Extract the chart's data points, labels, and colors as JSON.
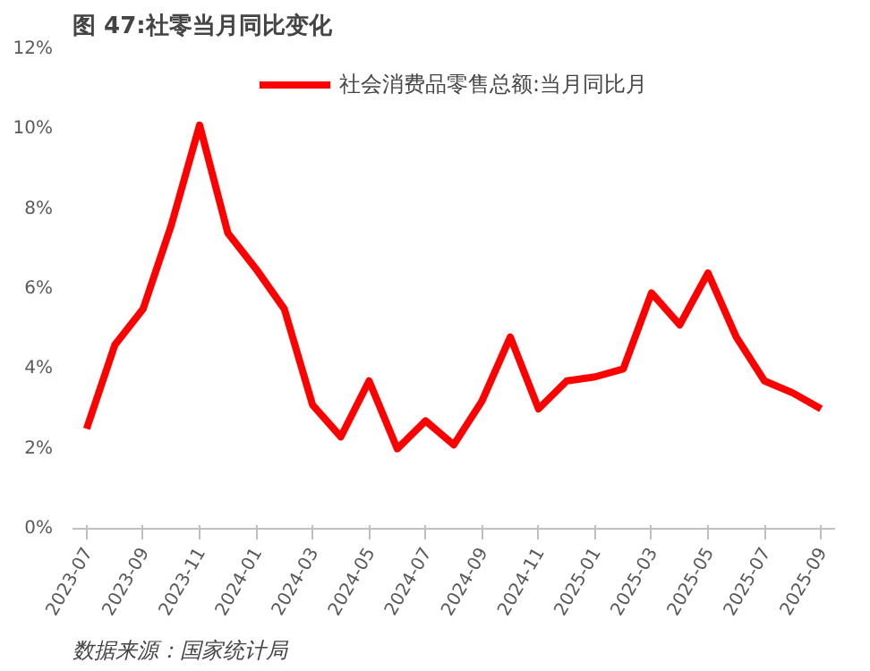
{
  "chart_data": {
    "type": "line",
    "title": "图 47:社零当月同比变化",
    "categories": [
      "2023-07",
      null,
      "2023-09",
      null,
      "2023-11",
      null,
      "2024-01",
      null,
      "2024-03",
      null,
      "2024-05",
      null,
      "2024-07",
      null,
      "2024-09",
      null,
      "2024-11",
      null,
      "2025-01",
      null,
      "2025-03",
      null,
      "2025-05",
      null,
      "2025-07",
      null,
      "2025-09"
    ],
    "series": [
      {
        "name": "社会消费品零售总额:当月同比月",
        "color": "#ff0000",
        "values": [
          2.5,
          4.6,
          5.5,
          7.6,
          10.1,
          7.4,
          6.5,
          5.5,
          3.1,
          2.3,
          3.7,
          2.0,
          2.7,
          2.1,
          3.2,
          4.8,
          3.0,
          3.7,
          3.8,
          4.0,
          5.9,
          5.1,
          6.4,
          4.8,
          3.7,
          3.4,
          3.0
        ]
      }
    ],
    "ylim": [
      0,
      12
    ],
    "yticks": [
      {
        "value": 0,
        "label": "0%"
      },
      {
        "value": 2,
        "label": "2%"
      },
      {
        "value": 4,
        "label": "4%"
      },
      {
        "value": 6,
        "label": "6%"
      },
      {
        "value": 8,
        "label": "8%"
      },
      {
        "value": 10,
        "label": "10%"
      },
      {
        "value": 12,
        "label": "12%"
      }
    ],
    "grid": false,
    "legend": "top",
    "marker": "none",
    "line_style": "solid",
    "annotations": [
      "数据来源：国家统计局"
    ]
  }
}
